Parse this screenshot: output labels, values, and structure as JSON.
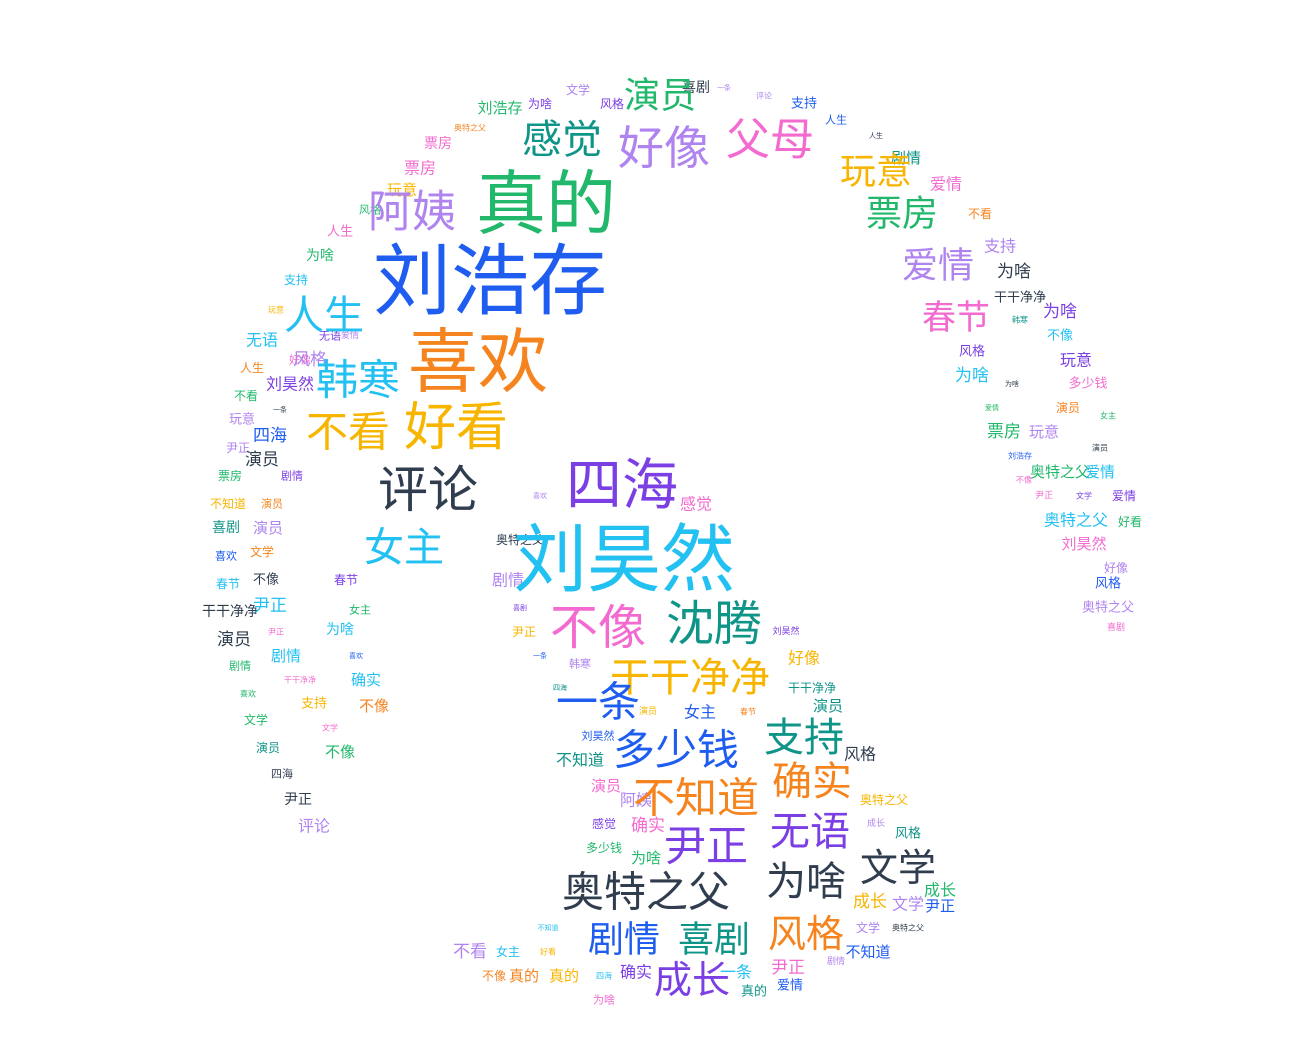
{
  "chart_data": {
    "type": "wordcloud",
    "palette": [
      "#1f5cf0",
      "#23c0f2",
      "#22b86b",
      "#f7b500",
      "#f5841f",
      "#f36bd0",
      "#b084ef",
      "#7b3fe4",
      "#0f9488",
      "#2f3d4f"
    ],
    "words": [
      {
        "text": "刘浩存",
        "weight": 75,
        "color": "#1f5cf0"
      },
      {
        "text": "刘昊然",
        "weight": 72,
        "color": "#23c0f2"
      },
      {
        "text": "喜欢",
        "weight": 70,
        "color": "#f5841f"
      },
      {
        "text": "真的",
        "weight": 68,
        "color": "#22b86b"
      },
      {
        "text": "四海",
        "weight": 55,
        "color": "#7b3fe4"
      },
      {
        "text": "好看",
        "weight": 52,
        "color": "#f7b500"
      },
      {
        "text": "评论",
        "weight": 50,
        "color": "#2f3d4f"
      },
      {
        "text": "不像",
        "weight": 50,
        "color": "#f36bd0"
      },
      {
        "text": "沈腾",
        "weight": 50,
        "color": "#0f9488"
      },
      {
        "text": "好像",
        "weight": 48,
        "color": "#b084ef"
      },
      {
        "text": "父母",
        "weight": 46,
        "color": "#f36bd0"
      },
      {
        "text": "阿姨",
        "weight": 45,
        "color": "#b084ef"
      },
      {
        "text": "不看",
        "weight": 44,
        "color": "#f7b500"
      },
      {
        "text": "韩寒",
        "weight": 44,
        "color": "#23c0f2"
      },
      {
        "text": "女主",
        "weight": 42,
        "color": "#23c0f2"
      },
      {
        "text": "人生",
        "weight": 42,
        "color": "#23c0f2"
      },
      {
        "text": "干干净净",
        "weight": 42,
        "color": "#f7b500"
      },
      {
        "text": "感觉",
        "weight": 42,
        "color": "#0f9488"
      },
      {
        "text": "一条",
        "weight": 42,
        "color": "#1f5cf0"
      },
      {
        "text": "多少钱",
        "weight": 42,
        "color": "#1f5cf0"
      },
      {
        "text": "支持",
        "weight": 42,
        "color": "#0f9488"
      },
      {
        "text": "不知道",
        "weight": 44,
        "color": "#f5841f"
      },
      {
        "text": "确实",
        "weight": 42,
        "color": "#f5841f"
      },
      {
        "text": "尹正",
        "weight": 44,
        "color": "#7b3fe4"
      },
      {
        "text": "无语",
        "weight": 42,
        "color": "#7b3fe4"
      },
      {
        "text": "奥特之父",
        "weight": 42,
        "color": "#2f3d4f"
      },
      {
        "text": "为啥",
        "weight": 40,
        "color": "#2f3d4f"
      },
      {
        "text": "文学",
        "weight": 40,
        "color": "#2f3d4f"
      },
      {
        "text": "剧情",
        "weight": 38,
        "color": "#1f5cf0"
      },
      {
        "text": "喜剧",
        "weight": 38,
        "color": "#0f9488"
      },
      {
        "text": "风格",
        "weight": 40,
        "color": "#f5841f"
      },
      {
        "text": "成长",
        "weight": 40,
        "color": "#7b3fe4"
      },
      {
        "text": "演员",
        "weight": 38,
        "color": "#22b86b"
      },
      {
        "text": "玩意",
        "weight": 36,
        "color": "#f7b500"
      },
      {
        "text": "票房",
        "weight": 38,
        "color": "#22b86b"
      },
      {
        "text": "爱情",
        "weight": 38,
        "color": "#b084ef"
      },
      {
        "text": "春节",
        "weight": 36,
        "color": "#f36bd0"
      }
    ]
  }
}
